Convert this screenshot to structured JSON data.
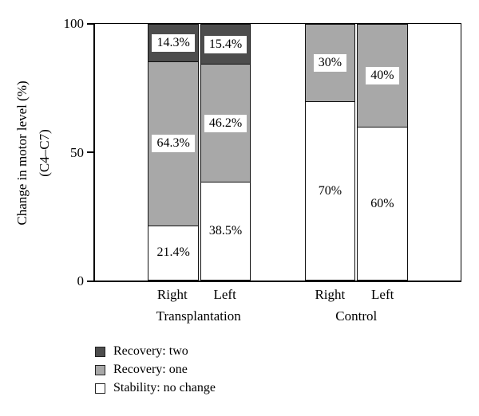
{
  "chart_data": {
    "type": "bar",
    "stacked": true,
    "orientation": "vertical",
    "title": "",
    "ylabel": "Change in motor level (%)",
    "ylabel_sub": "(C4–C7)",
    "ylim": [
      0,
      100
    ],
    "yticks": [
      "100",
      "50",
      "0"
    ],
    "grid": false,
    "legend_position": "bottom-left",
    "colors": {
      "recovery_two": "#4d4d4d",
      "recovery_one": "#a8a8a8",
      "stability": "#ffffff"
    },
    "legend": [
      {
        "key": "recovery_two",
        "label": "Recovery: two"
      },
      {
        "key": "recovery_one",
        "label": "Recovery: one"
      },
      {
        "key": "stability",
        "label": "Stability: no change"
      }
    ],
    "groups": [
      {
        "label": "Transplantation",
        "bars": [
          {
            "label": "Right",
            "stability": 21.4,
            "recovery_one": 64.3,
            "recovery_two": 14.3,
            "stability_label": "21.4%",
            "recovery_one_label": "64.3%",
            "recovery_two_label": "14.3%"
          },
          {
            "label": "Left",
            "stability": 38.5,
            "recovery_one": 46.2,
            "recovery_two": 15.4,
            "stability_label": "38.5%",
            "recovery_one_label": "46.2%",
            "recovery_two_label": "15.4%"
          }
        ]
      },
      {
        "label": "Control",
        "bars": [
          {
            "label": "Right",
            "stability": 70,
            "recovery_one": 30,
            "recovery_two": 0,
            "stability_label": "70%",
            "recovery_one_label": "30%"
          },
          {
            "label": "Left",
            "stability": 60,
            "recovery_one": 40,
            "recovery_two": 0,
            "stability_label": "60%",
            "recovery_one_label": "40%"
          }
        ]
      }
    ]
  }
}
